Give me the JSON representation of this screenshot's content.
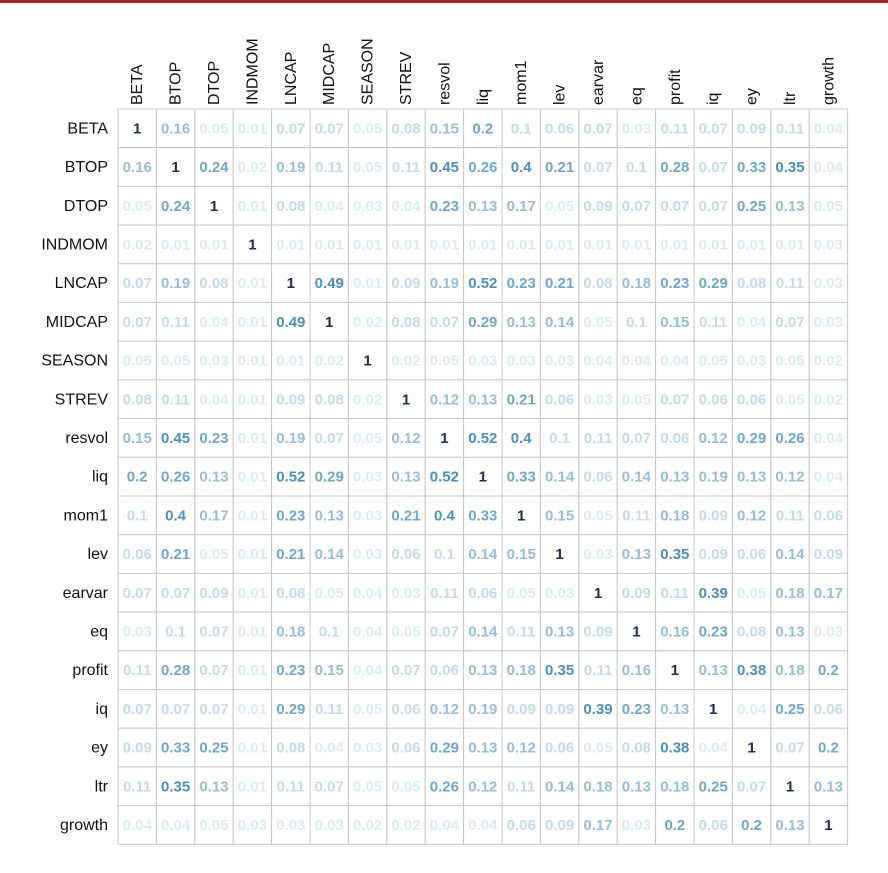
{
  "chart_data": {
    "type": "heatmap",
    "title": "",
    "labels": [
      "BETA",
      "BTOP",
      "DTOP",
      "INDMOM",
      "LNCAP",
      "MIDCAP",
      "SEASON",
      "STREV",
      "resvol",
      "liq",
      "mom1",
      "lev",
      "earvar",
      "eq",
      "profit",
      "iq",
      "ey",
      "ltr",
      "growth"
    ],
    "matrix": [
      [
        "1",
        "0.16",
        "0.05",
        "0.01",
        "0.07",
        "0.07",
        "0.05",
        "0.08",
        "0.15",
        "0.2",
        "0.1",
        "0.06",
        "0.07",
        "0.03",
        "0.11",
        "0.07",
        "0.09",
        "0.11",
        "0.04"
      ],
      [
        "0.16",
        "1",
        "0.24",
        "0.02",
        "0.19",
        "0.11",
        "0.05",
        "0.11",
        "0.45",
        "0.26",
        "0.4",
        "0.21",
        "0.07",
        "0.1",
        "0.28",
        "0.07",
        "0.33",
        "0.35",
        "0.04"
      ],
      [
        "0.05",
        "0.24",
        "1",
        "0.01",
        "0.08",
        "0.04",
        "0.03",
        "0.04",
        "0.23",
        "0.13",
        "0.17",
        "0.05",
        "0.09",
        "0.07",
        "0.07",
        "0.07",
        "0.25",
        "0.13",
        "0.05"
      ],
      [
        "0.02",
        "0.01",
        "0.01",
        "1",
        "0.01",
        "0.01",
        "0.01",
        "0.01",
        "0.01",
        "0.01",
        "0.01",
        "0.01",
        "0.01",
        "0.01",
        "0.01",
        "0.01",
        "0.01",
        "0.01",
        "0.03"
      ],
      [
        "0.07",
        "0.19",
        "0.08",
        "0.01",
        "1",
        "0.49",
        "0.01",
        "0.09",
        "0.19",
        "0.52",
        "0.23",
        "0.21",
        "0.08",
        "0.18",
        "0.23",
        "0.29",
        "0.08",
        "0.11",
        "0.03"
      ],
      [
        "0.07",
        "0.11",
        "0.04",
        "0.01",
        "0.49",
        "1",
        "0.02",
        "0.08",
        "0.07",
        "0.29",
        "0.13",
        "0.14",
        "0.05",
        "0.1",
        "0.15",
        "0.11",
        "0.04",
        "0.07",
        "0.03"
      ],
      [
        "0.05",
        "0.05",
        "0.03",
        "0.01",
        "0.01",
        "0.02",
        "1",
        "0.02",
        "0.05",
        "0.03",
        "0.03",
        "0.03",
        "0.04",
        "0.04",
        "0.04",
        "0.05",
        "0.03",
        "0.05",
        "0.02"
      ],
      [
        "0.08",
        "0.11",
        "0.04",
        "0.01",
        "0.09",
        "0.08",
        "0.02",
        "1",
        "0.12",
        "0.13",
        "0.21",
        "0.06",
        "0.03",
        "0.05",
        "0.07",
        "0.06",
        "0.06",
        "0.05",
        "0.02"
      ],
      [
        "0.15",
        "0.45",
        "0.23",
        "0.01",
        "0.19",
        "0.07",
        "0.05",
        "0.12",
        "1",
        "0.52",
        "0.4",
        "0.1",
        "0.11",
        "0.07",
        "0.06",
        "0.12",
        "0.29",
        "0.26",
        "0.04"
      ],
      [
        "0.2",
        "0.26",
        "0.13",
        "0.01",
        "0.52",
        "0.29",
        "0.03",
        "0.13",
        "0.52",
        "1",
        "0.33",
        "0.14",
        "0.06",
        "0.14",
        "0.13",
        "0.19",
        "0.13",
        "0.12",
        "0.04"
      ],
      [
        "0.1",
        "0.4",
        "0.17",
        "0.01",
        "0.23",
        "0.13",
        "0.03",
        "0.21",
        "0.4",
        "0.33",
        "1",
        "0.15",
        "0.05",
        "0.11",
        "0.18",
        "0.09",
        "0.12",
        "0.11",
        "0.06"
      ],
      [
        "0.06",
        "0.21",
        "0.05",
        "0.01",
        "0.21",
        "0.14",
        "0.03",
        "0.06",
        "0.1",
        "0.14",
        "0.15",
        "1",
        "0.03",
        "0.13",
        "0.35",
        "0.09",
        "0.06",
        "0.14",
        "0.09"
      ],
      [
        "0.07",
        "0.07",
        "0.09",
        "0.01",
        "0.08",
        "0.05",
        "0.04",
        "0.03",
        "0.11",
        "0.06",
        "0.05",
        "0.03",
        "1",
        "0.09",
        "0.11",
        "0.39",
        "0.05",
        "0.18",
        "0.17"
      ],
      [
        "0.03",
        "0.1",
        "0.07",
        "0.01",
        "0.18",
        "0.1",
        "0.04",
        "0.05",
        "0.07",
        "0.14",
        "0.11",
        "0.13",
        "0.09",
        "1",
        "0.16",
        "0.23",
        "0.08",
        "0.13",
        "0.03"
      ],
      [
        "0.11",
        "0.28",
        "0.07",
        "0.01",
        "0.23",
        "0.15",
        "0.04",
        "0.07",
        "0.06",
        "0.13",
        "0.18",
        "0.35",
        "0.11",
        "0.16",
        "1",
        "0.13",
        "0.38",
        "0.18",
        "0.2"
      ],
      [
        "0.07",
        "0.07",
        "0.07",
        "0.01",
        "0.29",
        "0.11",
        "0.05",
        "0.06",
        "0.12",
        "0.19",
        "0.09",
        "0.09",
        "0.39",
        "0.23",
        "0.13",
        "1",
        "0.04",
        "0.25",
        "0.06"
      ],
      [
        "0.09",
        "0.33",
        "0.25",
        "0.01",
        "0.08",
        "0.04",
        "0.03",
        "0.06",
        "0.29",
        "0.13",
        "0.12",
        "0.06",
        "0.05",
        "0.08",
        "0.38",
        "0.04",
        "1",
        "0.07",
        "0.2"
      ],
      [
        "0.11",
        "0.35",
        "0.13",
        "0.01",
        "0.11",
        "0.07",
        "0.05",
        "0.05",
        "0.26",
        "0.12",
        "0.11",
        "0.14",
        "0.18",
        "0.13",
        "0.18",
        "0.25",
        "0.07",
        "1",
        "0.13"
      ],
      [
        "0.04",
        "0.04",
        "0.05",
        "0.03",
        "0.03",
        "0.03",
        "0.02",
        "0.02",
        "0.04",
        "0.04",
        "0.06",
        "0.09",
        "0.17",
        "0.03",
        "0.2",
        "0.06",
        "0.2",
        "0.13",
        "1"
      ]
    ],
    "value_range": [
      0,
      1
    ],
    "colors": {
      "diagonal": "#1a2e55",
      "strong": "#5a9bc9",
      "faint": "#d9e7f2",
      "border": "#c8c8c8",
      "accent_bar": "#b22222"
    }
  }
}
